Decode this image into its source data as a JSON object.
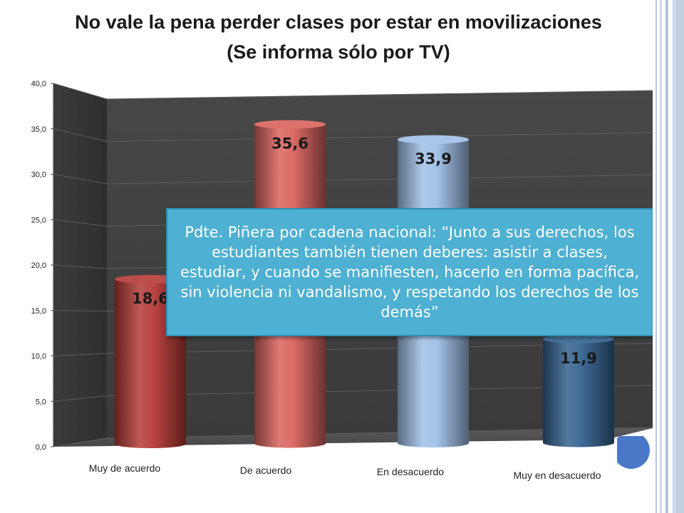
{
  "slide": {
    "title_line1": "No vale la pena perder clases por estar en movilizaciones",
    "title_line2": "(Se informa sólo por TV)",
    "quote": "Pdte. Piñera por cadena nacional: “Junto a sus derechos, los estudiantes también tienen deberes: asistir a clases, estudiar, y cuando se manifiesten, hacerlo en forma pacífica, sin violencia ni vandalismo, y respetando los derechos de los demás”"
  },
  "chart_data": {
    "type": "bar",
    "style": "3d-cylinder",
    "categories": [
      "Muy de acuerdo",
      "De acuerdo",
      "En desacuerdo",
      "Muy en desacuerdo"
    ],
    "values": [
      18.6,
      35.6,
      33.9,
      11.9
    ],
    "value_labels": [
      "18,6",
      "35,6",
      "33,9",
      "11,9"
    ],
    "bar_colors": [
      "#b53a36",
      "#d9625d",
      "#9fc0e8",
      "#34628f"
    ],
    "ylim": [
      0,
      40
    ],
    "y_ticks": [
      0,
      5,
      10,
      15,
      20,
      25,
      30,
      35,
      40
    ],
    "y_tick_labels": [
      "0,0",
      "5,0",
      "10,0",
      "15,0",
      "20,0",
      "25,0",
      "30,0",
      "35,0",
      "40,0"
    ],
    "grid": true,
    "legend": "none"
  }
}
